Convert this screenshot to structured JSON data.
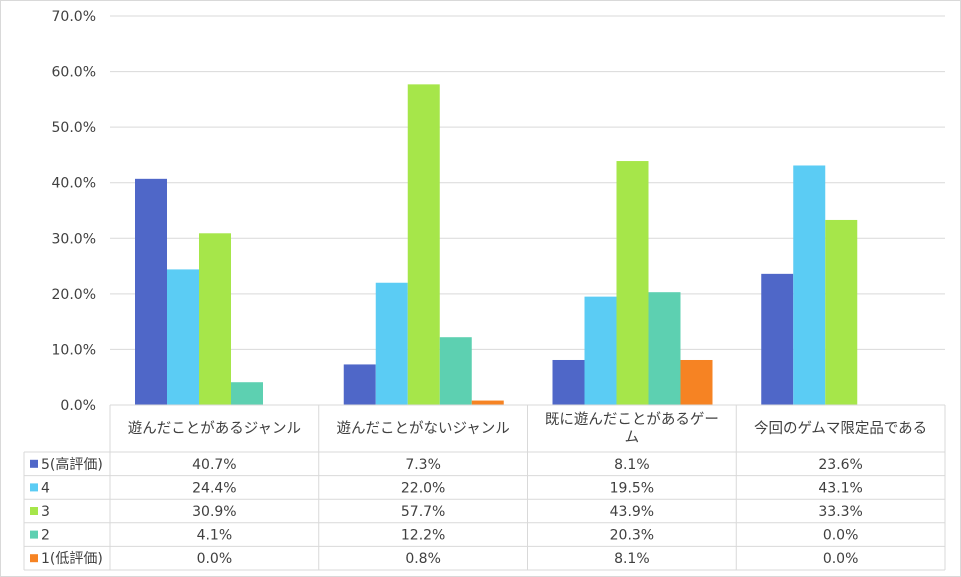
{
  "chart_data": {
    "type": "bar",
    "categories": [
      "遊んだことがあるジャンル",
      "遊んだことがないジャンル",
      "既に遊んだことがあるゲーム",
      "今回のゲムマ限定品である"
    ],
    "category_lines": [
      [
        "遊んだことがあるジャンル"
      ],
      [
        "遊んだことがないジャンル"
      ],
      [
        "既に遊んだことがあるゲー",
        "ム"
      ],
      [
        "今回のゲムマ限定品である"
      ]
    ],
    "series": [
      {
        "name": "5(高評価)",
        "color": "#4f67c8",
        "values": [
          40.7,
          7.3,
          8.1,
          23.6
        ],
        "labels": [
          "40.7%",
          "7.3%",
          "8.1%",
          "23.6%"
        ]
      },
      {
        "name": "4",
        "color": "#5bccf4",
        "values": [
          24.4,
          22.0,
          19.5,
          43.1
        ],
        "labels": [
          "24.4%",
          "22.0%",
          "19.5%",
          "43.1%"
        ]
      },
      {
        "name": "3",
        "color": "#a6e64a",
        "values": [
          30.9,
          57.7,
          43.9,
          33.3
        ],
        "labels": [
          "30.9%",
          "57.7%",
          "43.9%",
          "33.3%"
        ]
      },
      {
        "name": "2",
        "color": "#5dd0b1",
        "values": [
          4.1,
          12.2,
          20.3,
          0.0
        ],
        "labels": [
          "4.1%",
          "12.2%",
          "20.3%",
          "0.0%"
        ]
      },
      {
        "name": "1(低評価)",
        "color": "#f68323",
        "values": [
          0.0,
          0.8,
          8.1,
          0.0
        ],
        "labels": [
          "0.0%",
          "0.8%",
          "8.1%",
          "0.0%"
        ]
      }
    ],
    "ylim": [
      0,
      70
    ],
    "y_ticks": [
      0,
      10,
      20,
      30,
      40,
      50,
      60,
      70
    ],
    "y_tick_labels": [
      "0.0%",
      "10.0%",
      "20.0%",
      "30.0%",
      "40.0%",
      "50.0%",
      "60.0%",
      "70.0%"
    ],
    "grid": true,
    "legend": "data-table"
  }
}
